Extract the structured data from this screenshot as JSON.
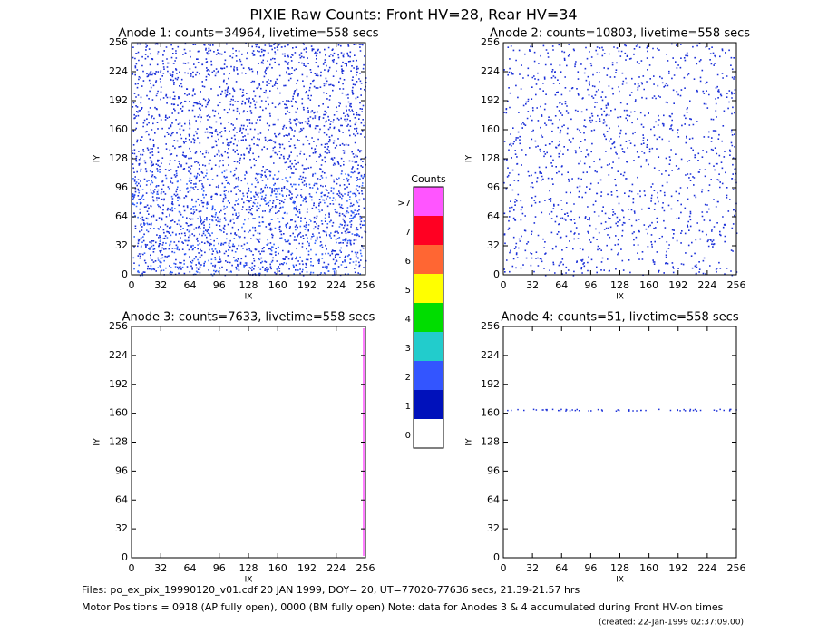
{
  "title": "PIXIE Raw Counts:  Front HV=28, Rear HV=34",
  "chart_data": [
    {
      "type": "heatmap",
      "title": "Anode 1: counts=34964, livetime=558 secs",
      "xlabel": "IX",
      "ylabel": "IY",
      "xlim": [
        0,
        256
      ],
      "ylim": [
        0,
        256
      ],
      "xticks": [
        0,
        32,
        64,
        96,
        128,
        160,
        192,
        224,
        256
      ],
      "yticks": [
        0,
        32,
        64,
        96,
        128,
        160,
        192,
        224,
        256
      ]
    },
    {
      "type": "heatmap",
      "title": "Anode 2: counts=10803, livetime=558 secs",
      "xlabel": "IX",
      "ylabel": "IY",
      "xlim": [
        0,
        256
      ],
      "ylim": [
        0,
        256
      ],
      "xticks": [
        0,
        32,
        64,
        96,
        128,
        160,
        192,
        224,
        256
      ],
      "yticks": [
        0,
        32,
        64,
        96,
        128,
        160,
        192,
        224,
        256
      ]
    },
    {
      "type": "heatmap",
      "title": "Anode 3: counts=7633, livetime=558 secs",
      "xlabel": "IX",
      "ylabel": "IY",
      "xlim": [
        0,
        256
      ],
      "ylim": [
        0,
        256
      ],
      "xticks": [
        0,
        32,
        64,
        96,
        128,
        160,
        192,
        224,
        256
      ],
      "yticks": [
        0,
        32,
        64,
        96,
        128,
        160,
        192,
        224,
        256
      ]
    },
    {
      "type": "heatmap",
      "title": "Anode 4: counts=51, livetime=558 secs",
      "xlabel": "IX",
      "ylabel": "IY",
      "xlim": [
        0,
        256
      ],
      "ylim": [
        0,
        256
      ],
      "xticks": [
        0,
        32,
        64,
        96,
        128,
        160,
        192,
        224,
        256
      ],
      "yticks": [
        0,
        32,
        64,
        96,
        128,
        160,
        192,
        224,
        256
      ]
    }
  ],
  "colorbar": {
    "title": "Counts",
    "labels": [
      ">7",
      "7",
      "6",
      "5",
      "4",
      "3",
      "2",
      "1",
      "0"
    ],
    "colors": [
      "#ff55ff",
      "#ff0022",
      "#ff6633",
      "#ffff00",
      "#00dd00",
      "#22cccc",
      "#3355ff",
      "#0011bb",
      "#ffffff"
    ]
  },
  "footer": [
    "Files: po_ex_pix_19990120_v01.cdf   20 JAN 1999, DOY= 20, UT=77020-77636 secs, 21.39-21.57 hrs",
    "Motor Positions = 0918 (AP fully open), 0000 (BM fully open)    Note: data for Anodes 3 & 4 accumulated during Front HV-on times",
    "(created: 22-Jan-1999 02:37:09.00)"
  ]
}
